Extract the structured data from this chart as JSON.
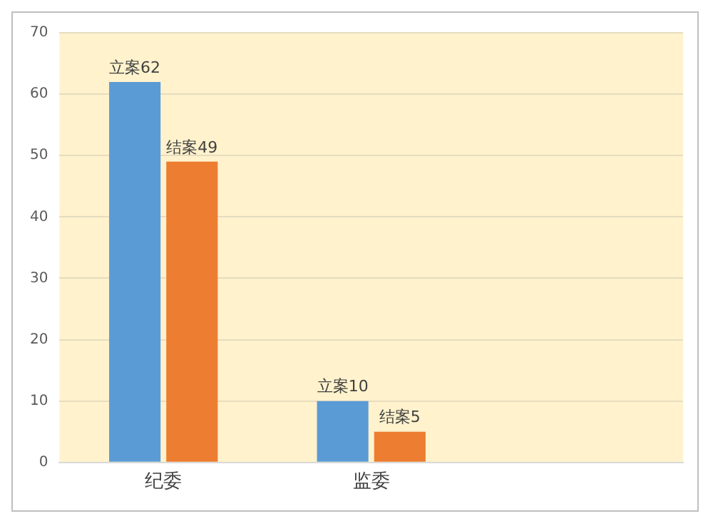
{
  "chart_data": {
    "type": "bar",
    "categories": [
      "纪委",
      "监委",
      null
    ],
    "series": [
      {
        "color": "#5b9bd5",
        "values": [
          62,
          10,
          null
        ],
        "value_labels": [
          "立案62",
          "立案10",
          null
        ]
      },
      {
        "color": "#ed7d31",
        "values": [
          49,
          5,
          null
        ],
        "value_labels": [
          "结案49",
          "结案5",
          null
        ]
      }
    ],
    "ylim": [
      0,
      70
    ],
    "yticks": [
      0,
      10,
      20,
      30,
      40,
      50,
      60,
      70
    ],
    "grid": "y",
    "legend": false
  }
}
